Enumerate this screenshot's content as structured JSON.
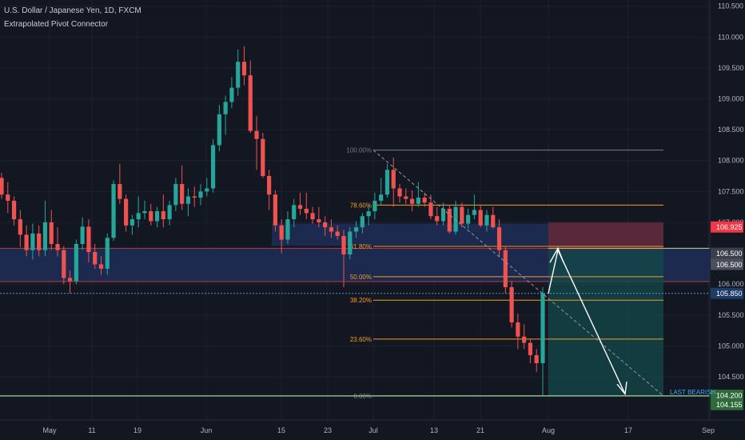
{
  "header": {
    "symbol": "U.S. Dollar / Japanese Yen, 1D, FXCM",
    "indicator": "Extrapolated Pivot Connector"
  },
  "colors": {
    "background": "#131722",
    "bull": "#26a69a",
    "bear": "#ef5350",
    "fib_line": "#f59b24",
    "zone": "#1c2b52",
    "support_line": "#9fd79a"
  },
  "chart_data": {
    "type": "candlestick",
    "symbol": "USDJPY",
    "timeframe": "1D",
    "y_axis": {
      "range": [
        103.8,
        110.6
      ],
      "ticks": [
        "110.500",
        "110.000",
        "109.500",
        "109.000",
        "108.500",
        "108.000",
        "107.500",
        "107.000",
        "106.000",
        "105.500",
        "105.000",
        "104.500"
      ]
    },
    "x_axis": {
      "ticks": [
        "May",
        "11",
        "19",
        "Jun",
        "15",
        "23",
        "Jul",
        "13",
        "21",
        "Aug",
        "17",
        "Sep"
      ]
    },
    "price_labels": [
      {
        "text": "106.925",
        "price": 106.925,
        "color": "#f23645"
      },
      {
        "text": "106.500",
        "price": 106.5,
        "color": "#3a3f4b"
      },
      {
        "text": "106.500",
        "price": 106.32,
        "color": "#4a4f5b"
      },
      {
        "text": "105.850",
        "price": 105.85,
        "color": "#1e3a66"
      },
      {
        "text": "104.200",
        "price": 104.2,
        "color": "#2f6b3a"
      },
      {
        "text": "104.155",
        "price": 104.05,
        "color": "#2f6b3a"
      }
    ],
    "fibonacci": [
      {
        "label": "100.00%",
        "price": 108.17
      },
      {
        "label": "78.60%",
        "price": 107.28
      },
      {
        "label": "61.80%",
        "price": 106.61
      },
      {
        "label": "50.00%",
        "price": 106.12
      },
      {
        "label": "38.20%",
        "price": 105.74
      },
      {
        "label": "23.60%",
        "price": 105.11
      },
      {
        "label": "0.00%",
        "price": 104.19
      }
    ],
    "annotations": [
      "LAST BEARISH"
    ],
    "candles": [
      [
        107.72,
        107.8,
        107.38,
        107.45
      ],
      [
        107.45,
        107.65,
        107.15,
        107.35
      ],
      [
        107.35,
        107.42,
        106.95,
        107.05
      ],
      [
        107.05,
        107.2,
        106.6,
        106.8
      ],
      [
        106.8,
        106.95,
        106.45,
        106.55
      ],
      [
        106.55,
        106.98,
        106.4,
        106.82
      ],
      [
        106.82,
        106.95,
        106.45,
        106.55
      ],
      [
        106.55,
        107.35,
        106.45,
        107.0
      ],
      [
        107.0,
        107.2,
        106.55,
        106.65
      ],
      [
        106.65,
        106.92,
        106.45,
        106.55
      ],
      [
        106.55,
        106.62,
        106.0,
        106.1
      ],
      [
        106.1,
        106.22,
        105.85,
        106.05
      ],
      [
        106.05,
        106.72,
        106.0,
        106.65
      ],
      [
        106.65,
        107.08,
        106.55,
        106.93
      ],
      [
        106.93,
        107.05,
        106.35,
        106.52
      ],
      [
        106.52,
        106.65,
        106.25,
        106.32
      ],
      [
        106.32,
        106.45,
        106.15,
        106.25
      ],
      [
        106.25,
        106.82,
        106.15,
        106.75
      ],
      [
        106.75,
        107.68,
        106.7,
        107.62
      ],
      [
        107.62,
        107.95,
        107.3,
        107.38
      ],
      [
        107.38,
        107.45,
        106.85,
        106.95
      ],
      [
        106.95,
        107.12,
        106.8,
        107.05
      ],
      [
        107.05,
        107.42,
        106.92,
        107.15
      ],
      [
        107.15,
        107.35,
        107.05,
        107.18
      ],
      [
        107.18,
        107.3,
        106.95,
        107.02
      ],
      [
        107.02,
        107.25,
        106.92,
        107.18
      ],
      [
        107.18,
        107.45,
        106.92,
        107.05
      ],
      [
        107.05,
        107.35,
        106.95,
        107.28
      ],
      [
        107.28,
        107.72,
        107.18,
        107.62
      ],
      [
        107.62,
        107.92,
        107.2,
        107.3
      ],
      [
        107.3,
        107.55,
        107.1,
        107.42
      ],
      [
        107.42,
        107.58,
        107.25,
        107.4
      ],
      [
        107.4,
        107.62,
        107.28,
        107.5
      ],
      [
        107.5,
        107.72,
        107.42,
        107.55
      ],
      [
        107.55,
        108.35,
        107.48,
        108.25
      ],
      [
        108.25,
        108.9,
        108.15,
        108.75
      ],
      [
        108.75,
        109.05,
        108.42,
        108.95
      ],
      [
        108.95,
        109.35,
        108.85,
        109.18
      ],
      [
        109.18,
        109.8,
        109.05,
        109.6
      ],
      [
        109.6,
        109.85,
        109.22,
        109.38
      ],
      [
        109.38,
        109.62,
        108.45,
        108.48
      ],
      [
        108.48,
        108.72,
        107.85,
        108.35
      ],
      [
        108.35,
        108.45,
        107.72,
        107.75
      ],
      [
        107.75,
        107.85,
        107.2,
        107.45
      ],
      [
        107.45,
        107.52,
        106.85,
        106.95
      ],
      [
        106.95,
        107.05,
        106.5,
        106.72
      ],
      [
        106.72,
        107.18,
        106.65,
        107.05
      ],
      [
        107.05,
        107.38,
        106.92,
        107.28
      ],
      [
        107.28,
        107.48,
        107.12,
        107.22
      ],
      [
        107.22,
        107.48,
        107.05,
        107.15
      ],
      [
        107.15,
        107.25,
        106.98,
        107.05
      ],
      [
        107.05,
        107.25,
        106.92,
        107.0
      ],
      [
        107.0,
        107.1,
        106.78,
        106.92
      ],
      [
        106.92,
        107.05,
        106.75,
        106.85
      ],
      [
        106.85,
        106.95,
        106.72,
        106.78
      ],
      [
        106.78,
        106.88,
        105.95,
        106.48
      ],
      [
        106.48,
        106.92,
        106.4,
        106.85
      ],
      [
        106.85,
        107.02,
        106.75,
        106.92
      ],
      [
        106.92,
        107.15,
        106.82,
        107.1
      ],
      [
        107.1,
        107.28,
        106.95,
        107.18
      ],
      [
        107.18,
        107.48,
        107.05,
        107.35
      ],
      [
        107.35,
        107.72,
        107.28,
        107.45
      ],
      [
        107.45,
        107.95,
        107.4,
        107.85
      ],
      [
        107.85,
        108.05,
        107.25,
        107.55
      ],
      [
        107.55,
        107.62,
        107.32,
        107.42
      ],
      [
        107.42,
        107.55,
        107.3,
        107.38
      ],
      [
        107.38,
        107.52,
        107.18,
        107.3
      ],
      [
        107.3,
        107.65,
        107.25,
        107.4
      ],
      [
        107.4,
        107.48,
        107.25,
        107.32
      ],
      [
        107.32,
        107.45,
        107.05,
        107.1
      ],
      [
        107.1,
        107.25,
        106.95,
        107.02
      ],
      [
        107.02,
        107.32,
        106.95,
        107.22
      ],
      [
        107.22,
        107.28,
        106.82,
        106.85
      ],
      [
        106.85,
        107.35,
        106.8,
        107.25
      ],
      [
        107.25,
        107.32,
        106.92,
        106.98
      ],
      [
        106.98,
        107.22,
        106.9,
        107.12
      ],
      [
        107.12,
        107.45,
        107.05,
        107.2
      ],
      [
        107.2,
        107.28,
        106.92,
        106.95
      ],
      [
        106.95,
        107.2,
        106.85,
        107.12
      ],
      [
        107.12,
        107.25,
        106.9,
        106.92
      ],
      [
        106.92,
        107.05,
        106.45,
        106.55
      ],
      [
        106.55,
        106.62,
        105.85,
        105.95
      ],
      [
        105.95,
        106.05,
        105.3,
        105.38
      ],
      [
        105.38,
        105.52,
        104.95,
        105.15
      ],
      [
        105.15,
        105.35,
        104.95,
        105.05
      ],
      [
        105.05,
        105.12,
        104.72,
        104.85
      ],
      [
        104.85,
        104.95,
        104.58,
        104.72
      ],
      [
        104.72,
        105.95,
        104.2,
        105.85
      ]
    ]
  }
}
